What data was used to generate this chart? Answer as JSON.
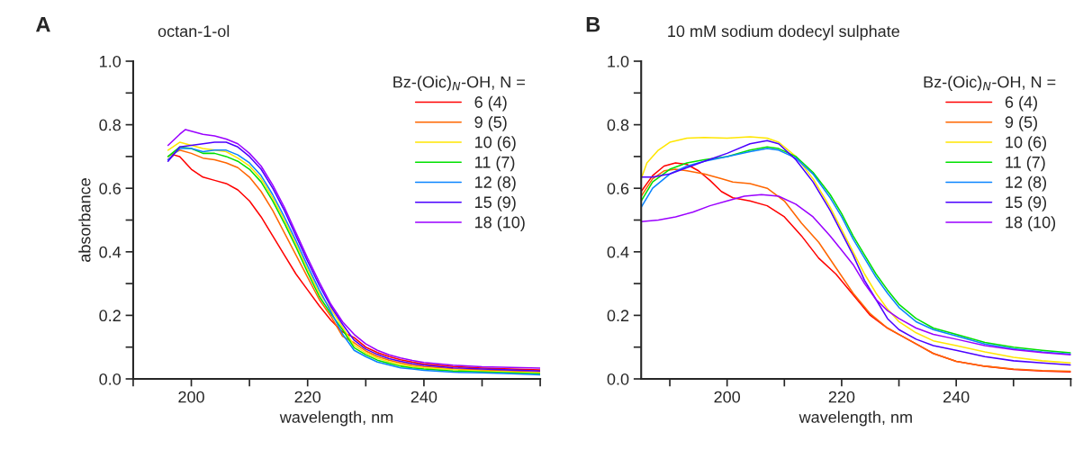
{
  "chart_data": [
    {
      "type": "line",
      "title": "octan-1-ol",
      "annotations": [
        "A"
      ],
      "xlabel": "wavelength, nm",
      "ylabel": "absorbance",
      "legend_title": "Bz-(Oic)$_{N}$-OH, N =",
      "legend": "top right",
      "grid": false,
      "xlim": [
        190,
        260
      ],
      "xticks": [
        {
          "value": 190,
          "label": null
        },
        200,
        {
          "value": 210,
          "label": null
        },
        220,
        {
          "value": 230,
          "label": null
        },
        240,
        {
          "value": 250,
          "label": null
        },
        {
          "value": 260,
          "label": null
        }
      ],
      "ylim": [
        0,
        1
      ],
      "yticks": [
        {
          "value": 0,
          "label": "0.0"
        },
        {
          "value": 0.1,
          "label": null
        },
        0.2,
        {
          "value": 0.3,
          "label": null
        },
        0.4,
        {
          "value": 0.5,
          "label": null
        },
        0.6,
        {
          "value": 0.7,
          "label": null
        },
        0.8,
        {
          "value": 0.9,
          "label": null
        },
        {
          "value": 1,
          "label": "1.0"
        }
      ],
      "series": [
        {
          "name": "6 (4)",
          "color": "#ff0000",
          "x": [
            196,
            197,
            198,
            200,
            202,
            204,
            206,
            208,
            210,
            212,
            214,
            216,
            218,
            220,
            222,
            224,
            226,
            228,
            230,
            232,
            234,
            236,
            238,
            240,
            245,
            250,
            255,
            260
          ],
          "values": [
            0.69,
            0.705,
            0.7,
            0.66,
            0.635,
            0.625,
            0.615,
            0.595,
            0.56,
            0.51,
            0.45,
            0.39,
            0.33,
            0.28,
            0.23,
            0.185,
            0.148,
            0.13,
            0.1,
            0.083,
            0.07,
            0.06,
            0.053,
            0.047,
            0.039,
            0.034,
            0.031,
            0.028
          ]
        },
        {
          "name": "9 (5)",
          "color": "#ff6600",
          "x": [
            196,
            198,
            200,
            202,
            204,
            206,
            208,
            210,
            212,
            214,
            216,
            218,
            220,
            222,
            224,
            226,
            228,
            230,
            232,
            234,
            236,
            238,
            240,
            245,
            250,
            255,
            260
          ],
          "values": [
            0.7,
            0.72,
            0.71,
            0.695,
            0.69,
            0.68,
            0.665,
            0.635,
            0.59,
            0.53,
            0.46,
            0.39,
            0.32,
            0.25,
            0.197,
            0.134,
            0.114,
            0.088,
            0.071,
            0.059,
            0.05,
            0.043,
            0.039,
            0.032,
            0.028,
            0.025,
            0.022
          ]
        },
        {
          "name": "10 (6)",
          "color": "#ffe600",
          "x": [
            196,
            198,
            200,
            202,
            204,
            206,
            208,
            210,
            212,
            214,
            216,
            218,
            220,
            222,
            224,
            226,
            228,
            230,
            232,
            234,
            236,
            238,
            240,
            245,
            250,
            255,
            260
          ],
          "values": [
            0.72,
            0.745,
            0.735,
            0.725,
            0.72,
            0.715,
            0.695,
            0.67,
            0.63,
            0.57,
            0.5,
            0.425,
            0.345,
            0.27,
            0.22,
            0.163,
            0.106,
            0.082,
            0.065,
            0.054,
            0.045,
            0.039,
            0.035,
            0.029,
            0.025,
            0.022,
            0.019
          ]
        },
        {
          "name": "11 (7)",
          "color": "#00e000",
          "x": [
            196,
            198,
            200,
            202,
            204,
            206,
            208,
            210,
            212,
            214,
            216,
            218,
            220,
            222,
            224,
            226,
            228,
            230,
            232,
            234,
            236,
            238,
            240,
            245,
            250,
            255,
            260
          ],
          "values": [
            0.7,
            0.73,
            0.725,
            0.71,
            0.71,
            0.7,
            0.685,
            0.66,
            0.62,
            0.56,
            0.49,
            0.415,
            0.335,
            0.26,
            0.205,
            0.155,
            0.098,
            0.076,
            0.059,
            0.049,
            0.04,
            0.035,
            0.031,
            0.025,
            0.022,
            0.019,
            0.016
          ]
        },
        {
          "name": "12 (8)",
          "color": "#0a84ff",
          "x": [
            196,
            198,
            200,
            202,
            204,
            206,
            208,
            210,
            212,
            214,
            216,
            218,
            220,
            222,
            224,
            226,
            228,
            230,
            232,
            234,
            236,
            238,
            240,
            245,
            250,
            255,
            260
          ],
          "values": [
            0.69,
            0.725,
            0.725,
            0.715,
            0.72,
            0.72,
            0.705,
            0.68,
            0.64,
            0.58,
            0.51,
            0.435,
            0.355,
            0.28,
            0.212,
            0.141,
            0.09,
            0.07,
            0.053,
            0.044,
            0.035,
            0.031,
            0.027,
            0.021,
            0.019,
            0.016,
            0.013
          ]
        },
        {
          "name": "15 (9)",
          "color": "#4b00ff",
          "x": [
            196,
            198,
            200,
            202,
            204,
            206,
            208,
            210,
            212,
            214,
            216,
            218,
            220,
            222,
            224,
            226,
            228,
            230,
            232,
            234,
            236,
            238,
            240,
            245,
            250,
            255,
            260
          ],
          "values": [
            0.685,
            0.73,
            0.735,
            0.74,
            0.745,
            0.745,
            0.73,
            0.7,
            0.66,
            0.6,
            0.53,
            0.45,
            0.37,
            0.295,
            0.228,
            0.172,
            0.122,
            0.094,
            0.077,
            0.064,
            0.055,
            0.048,
            0.043,
            0.035,
            0.031,
            0.028,
            0.025
          ]
        },
        {
          "name": "18 (10)",
          "color": "#9a00ff",
          "x": [
            196,
            198,
            199,
            200,
            202,
            204,
            206,
            208,
            210,
            212,
            214,
            216,
            218,
            220,
            222,
            224,
            226,
            228,
            230,
            232,
            234,
            236,
            238,
            240,
            245,
            250,
            255,
            260
          ],
          "values": [
            0.735,
            0.77,
            0.785,
            0.78,
            0.77,
            0.765,
            0.755,
            0.74,
            0.71,
            0.67,
            0.61,
            0.54,
            0.46,
            0.38,
            0.305,
            0.235,
            0.18,
            0.14,
            0.11,
            0.09,
            0.076,
            0.066,
            0.058,
            0.052,
            0.043,
            0.038,
            0.036,
            0.034
          ]
        }
      ]
    },
    {
      "type": "line",
      "title": "10 mM sodium dodecyl sulphate",
      "annotations": [
        "B"
      ],
      "xlabel": "wavelength, nm",
      "legend_title": "Bz-(Oic)$_{N}$-OH, N =",
      "legend": "top right",
      "grid": false,
      "xlim": [
        185,
        260
      ],
      "xticks": [
        {
          "value": 190,
          "label": null
        },
        200,
        {
          "value": 210,
          "label": null
        },
        220,
        {
          "value": 230,
          "label": null
        },
        240,
        {
          "value": 250,
          "label": null
        },
        {
          "value": 260,
          "label": null
        }
      ],
      "ylim": [
        0,
        1
      ],
      "yticks": [
        {
          "value": 0,
          "label": "0.0"
        },
        {
          "value": 0.1,
          "label": null
        },
        0.2,
        {
          "value": 0.3,
          "label": null
        },
        0.4,
        {
          "value": 0.5,
          "label": null
        },
        0.6,
        {
          "value": 0.7,
          "label": null
        },
        0.8,
        {
          "value": 0.9,
          "label": null
        },
        {
          "value": 1,
          "label": "1.0"
        }
      ],
      "series": [
        {
          "name": "6 (4)",
          "color": "#ff0000",
          "x": [
            185,
            187,
            189,
            191,
            193,
            195,
            197,
            199,
            201,
            204,
            207,
            210,
            213,
            216,
            219,
            222,
            225,
            228,
            230,
            233,
            236,
            240,
            245,
            250,
            255,
            260
          ],
          "values": [
            0.59,
            0.64,
            0.67,
            0.68,
            0.675,
            0.655,
            0.625,
            0.59,
            0.57,
            0.56,
            0.545,
            0.51,
            0.45,
            0.38,
            0.33,
            0.265,
            0.2,
            0.16,
            0.14,
            0.11,
            0.08,
            0.055,
            0.04,
            0.03,
            0.025,
            0.022
          ]
        },
        {
          "name": "9 (5)",
          "color": "#ff6600",
          "x": [
            185,
            187,
            189,
            191,
            193,
            196,
            199,
            201,
            204,
            207,
            210,
            213,
            216,
            219,
            222,
            225,
            228,
            230,
            233,
            236,
            240,
            245,
            250,
            255,
            260
          ],
          "values": [
            0.575,
            0.63,
            0.655,
            0.66,
            0.655,
            0.645,
            0.63,
            0.62,
            0.615,
            0.6,
            0.56,
            0.49,
            0.43,
            0.35,
            0.27,
            0.205,
            0.16,
            0.14,
            0.11,
            0.08,
            0.055,
            0.04,
            0.031,
            0.026,
            0.024
          ]
        },
        {
          "name": "10 (6)",
          "color": "#ffe600",
          "x": [
            185,
            186,
            188,
            190,
            193,
            196,
            200,
            204,
            207,
            209,
            212,
            215,
            218,
            220,
            222,
            224,
            226,
            228,
            230,
            233,
            236,
            240,
            245,
            250,
            255,
            260
          ],
          "values": [
            0.63,
            0.68,
            0.72,
            0.745,
            0.758,
            0.76,
            0.758,
            0.762,
            0.758,
            0.745,
            0.7,
            0.63,
            0.54,
            0.47,
            0.4,
            0.33,
            0.27,
            0.22,
            0.18,
            0.145,
            0.12,
            0.105,
            0.085,
            0.068,
            0.057,
            0.05
          ]
        },
        {
          "name": "11 (7)",
          "color": "#00e000",
          "x": [
            185,
            187,
            190,
            193,
            196,
            200,
            204,
            207,
            209,
            212,
            215,
            218,
            220,
            222,
            224,
            226,
            228,
            230,
            233,
            236,
            240,
            245,
            250,
            255,
            260
          ],
          "values": [
            0.56,
            0.62,
            0.66,
            0.68,
            0.69,
            0.7,
            0.72,
            0.73,
            0.725,
            0.7,
            0.65,
            0.58,
            0.52,
            0.45,
            0.39,
            0.33,
            0.28,
            0.235,
            0.19,
            0.16,
            0.14,
            0.115,
            0.1,
            0.09,
            0.082
          ]
        },
        {
          "name": "12 (8)",
          "color": "#0a84ff",
          "x": [
            185,
            187,
            190,
            193,
            196,
            200,
            204,
            207,
            209,
            212,
            215,
            218,
            220,
            222,
            224,
            226,
            228,
            230,
            233,
            236,
            240,
            245,
            250,
            255,
            260
          ],
          "values": [
            0.54,
            0.6,
            0.645,
            0.67,
            0.685,
            0.7,
            0.715,
            0.725,
            0.72,
            0.695,
            0.645,
            0.57,
            0.51,
            0.44,
            0.38,
            0.32,
            0.27,
            0.225,
            0.18,
            0.155,
            0.135,
            0.11,
            0.095,
            0.085,
            0.078
          ]
        },
        {
          "name": "15 (9)",
          "color": "#4b00ff",
          "x": [
            185,
            187,
            190,
            193,
            196,
            200,
            204,
            207,
            209,
            212,
            215,
            218,
            220,
            222,
            224,
            226,
            228,
            230,
            233,
            236,
            240,
            245,
            250,
            255,
            260
          ],
          "values": [
            0.635,
            0.635,
            0.645,
            0.665,
            0.685,
            0.71,
            0.74,
            0.75,
            0.74,
            0.69,
            0.62,
            0.53,
            0.46,
            0.39,
            0.31,
            0.25,
            0.19,
            0.155,
            0.125,
            0.105,
            0.09,
            0.07,
            0.057,
            0.05,
            0.044
          ]
        },
        {
          "name": "18 (10)",
          "color": "#9a00ff",
          "x": [
            185,
            188,
            191,
            194,
            197,
            200,
            203,
            206,
            209,
            212,
            215,
            218,
            220,
            222,
            224,
            226,
            228,
            230,
            233,
            236,
            240,
            245,
            250,
            255,
            260
          ],
          "values": [
            0.495,
            0.5,
            0.51,
            0.525,
            0.545,
            0.56,
            0.575,
            0.58,
            0.575,
            0.55,
            0.51,
            0.45,
            0.405,
            0.36,
            0.3,
            0.25,
            0.215,
            0.19,
            0.16,
            0.14,
            0.125,
            0.105,
            0.092,
            0.083,
            0.076
          ]
        }
      ]
    }
  ]
}
